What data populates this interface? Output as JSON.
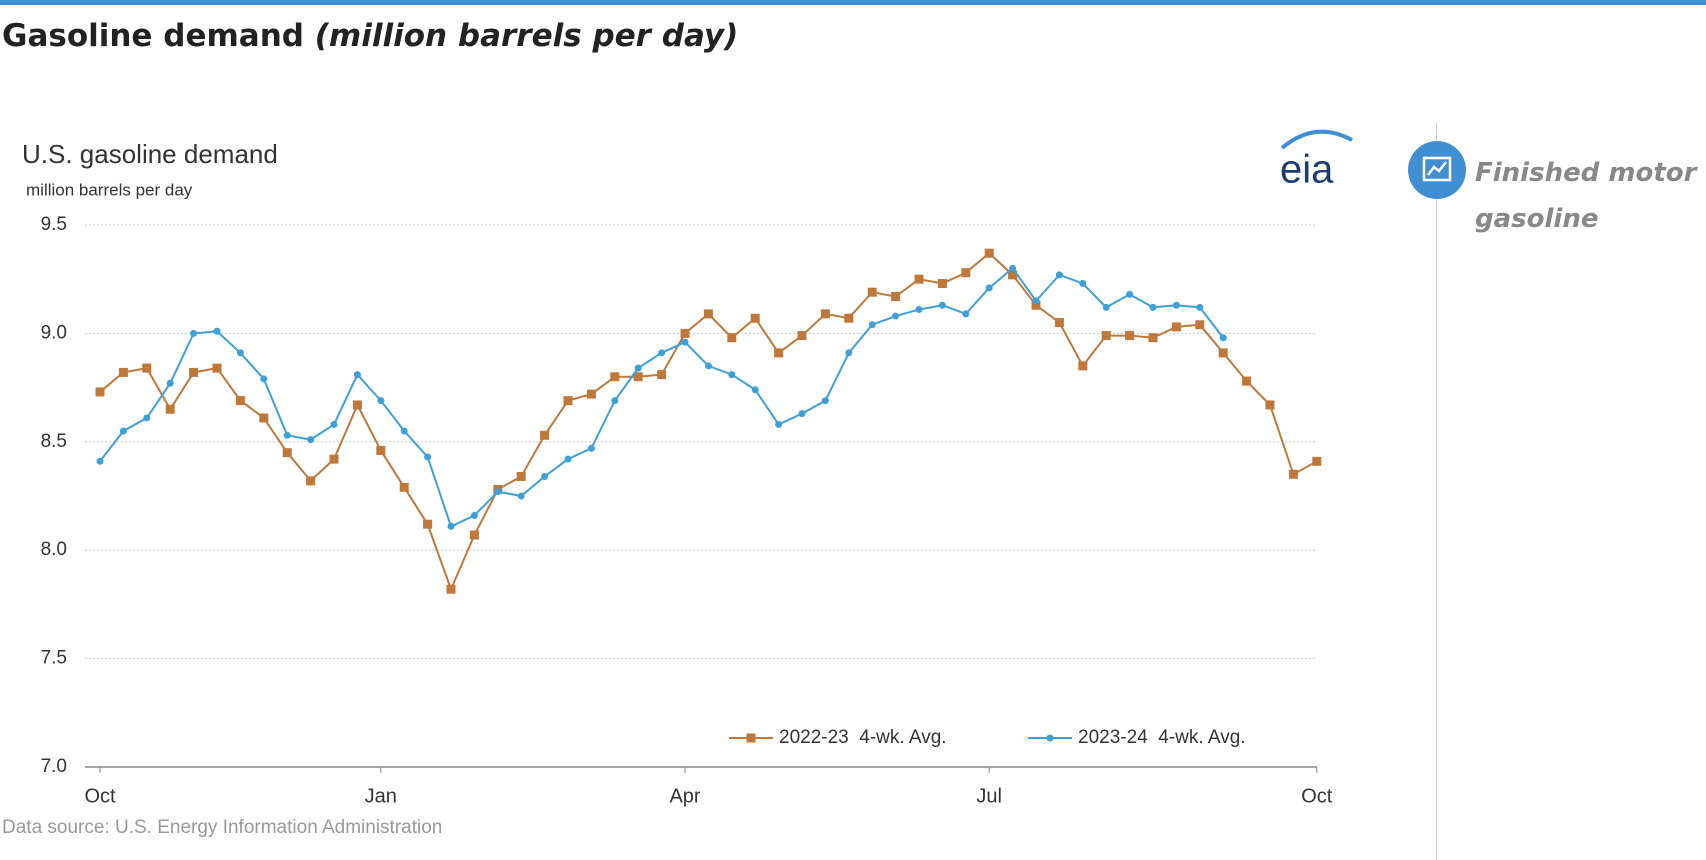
{
  "header": {
    "title": "Gasoline demand",
    "title_italic": "(million barrels per day)"
  },
  "side_panel": {
    "label": "Finished motor gasoline"
  },
  "chart_data": {
    "type": "line",
    "title": "U.S. gasoline demand",
    "subtitle": "million barrels per day",
    "logo": "eia",
    "source": "Data source: U.S. Energy Information Administration",
    "categories": [
      "Oct",
      null,
      null,
      null,
      null,
      null,
      null,
      null,
      null,
      null,
      null,
      null,
      "Jan",
      null,
      null,
      null,
      null,
      null,
      null,
      null,
      null,
      null,
      null,
      null,
      null,
      "Apr",
      null,
      null,
      null,
      null,
      null,
      null,
      null,
      null,
      null,
      null,
      null,
      null,
      "Jul",
      null,
      null,
      null,
      null,
      null,
      null,
      null,
      null,
      null,
      null,
      null,
      null,
      null,
      "Oct"
    ],
    "series": [
      {
        "name": "2022-23  4-wk. Avg.",
        "color": "#c0783a",
        "marker": "square",
        "values": [
          8.73,
          8.82,
          8.84,
          8.65,
          8.82,
          8.84,
          8.69,
          8.61,
          8.45,
          8.32,
          8.42,
          8.67,
          8.46,
          8.29,
          8.12,
          7.82,
          8.07,
          8.28,
          8.34,
          8.53,
          8.69,
          8.72,
          8.8,
          8.8,
          8.81,
          9.0,
          9.09,
          8.98,
          9.07,
          8.91,
          8.99,
          9.09,
          9.07,
          9.19,
          9.17,
          9.25,
          9.23,
          9.28,
          9.37,
          9.27,
          9.13,
          9.05,
          8.85,
          8.99,
          8.99,
          8.98,
          9.03,
          9.04,
          8.91,
          8.78,
          8.67,
          8.35,
          8.41
        ]
      },
      {
        "name": "2023-24  4-wk. Avg.",
        "color": "#3ea0d8",
        "marker": "circle",
        "values": [
          8.41,
          8.55,
          8.61,
          8.77,
          9.0,
          9.01,
          8.91,
          8.79,
          8.53,
          8.51,
          8.58,
          8.81,
          8.69,
          8.55,
          8.43,
          8.11,
          8.16,
          8.27,
          8.25,
          8.34,
          8.42,
          8.47,
          8.69,
          8.84,
          8.91,
          8.96,
          8.85,
          8.81,
          8.74,
          8.58,
          8.63,
          8.69,
          8.91,
          9.04,
          9.08,
          9.11,
          9.13,
          9.09,
          9.21,
          9.3,
          9.15,
          9.27,
          9.23,
          9.12,
          9.18,
          9.12,
          9.13,
          9.12,
          8.98,
          null,
          null,
          null,
          null
        ]
      }
    ],
    "ylim": [
      7,
      9.5
    ],
    "yticks": [
      {
        "value": 7,
        "label": "7.0"
      },
      7.5,
      {
        "value": 8,
        "label": "8.0"
      },
      8.5,
      {
        "value": 9,
        "label": "9.0"
      },
      9.5
    ],
    "grid": true,
    "legend": "bottom-right"
  }
}
